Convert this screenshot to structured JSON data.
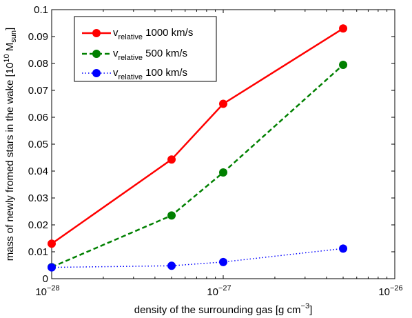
{
  "chart_data": {
    "type": "line",
    "xlabel": "density of the surrounding gas [g cm",
    "xlabel_sup": "−3",
    "xlabel_end": "]",
    "ylabel": "mass of newly fromed stars in the wake [10",
    "ylabel_sup": "10",
    "ylabel_mid": " M",
    "ylabel_sub": "sun",
    "ylabel_end": "]",
    "x_scale": "log",
    "xlim": [
      1e-28,
      1e-26
    ],
    "ylim": [
      0,
      0.1
    ],
    "grid": false,
    "legend_position": "top-left",
    "x_ticks": [
      {
        "value": 1e-28,
        "base": "10",
        "exp": "−28"
      },
      {
        "value": 1e-27,
        "base": "10",
        "exp": "−27"
      },
      {
        "value": 1e-26,
        "base": "10",
        "exp": "−26"
      }
    ],
    "y_ticks": [
      {
        "value": 0,
        "label": "0"
      },
      {
        "value": 0.01,
        "label": "0.01"
      },
      {
        "value": 0.02,
        "label": "0.02"
      },
      {
        "value": 0.03,
        "label": "0.03"
      },
      {
        "value": 0.04,
        "label": "0.04"
      },
      {
        "value": 0.05,
        "label": "0.05"
      },
      {
        "value": 0.06,
        "label": "0.06"
      },
      {
        "value": 0.07,
        "label": "0.07"
      },
      {
        "value": 0.08,
        "label": "0.08"
      },
      {
        "value": 0.09,
        "label": "0.09"
      },
      {
        "value": 0.1,
        "label": "0.1"
      }
    ],
    "x": [
      1e-28,
      5e-28,
      1e-27,
      5e-27
    ],
    "series": [
      {
        "name": "v",
        "name_sub": "relative",
        "name_rest": " 1000 km/s",
        "values": [
          0.013,
          0.0443,
          0.065,
          0.093
        ],
        "color": "#ff0000",
        "style": "solid"
      },
      {
        "name": "v",
        "name_sub": "relative",
        "name_rest": " 500 km/s",
        "values": [
          0.0043,
          0.0235,
          0.0395,
          0.0795
        ],
        "color": "#008000",
        "style": "dashed"
      },
      {
        "name": "v",
        "name_sub": "relative",
        "name_rest": " 100 km/s",
        "values": [
          0.0042,
          0.0048,
          0.0062,
          0.0112
        ],
        "color": "#0000ff",
        "style": "dotted"
      }
    ]
  }
}
